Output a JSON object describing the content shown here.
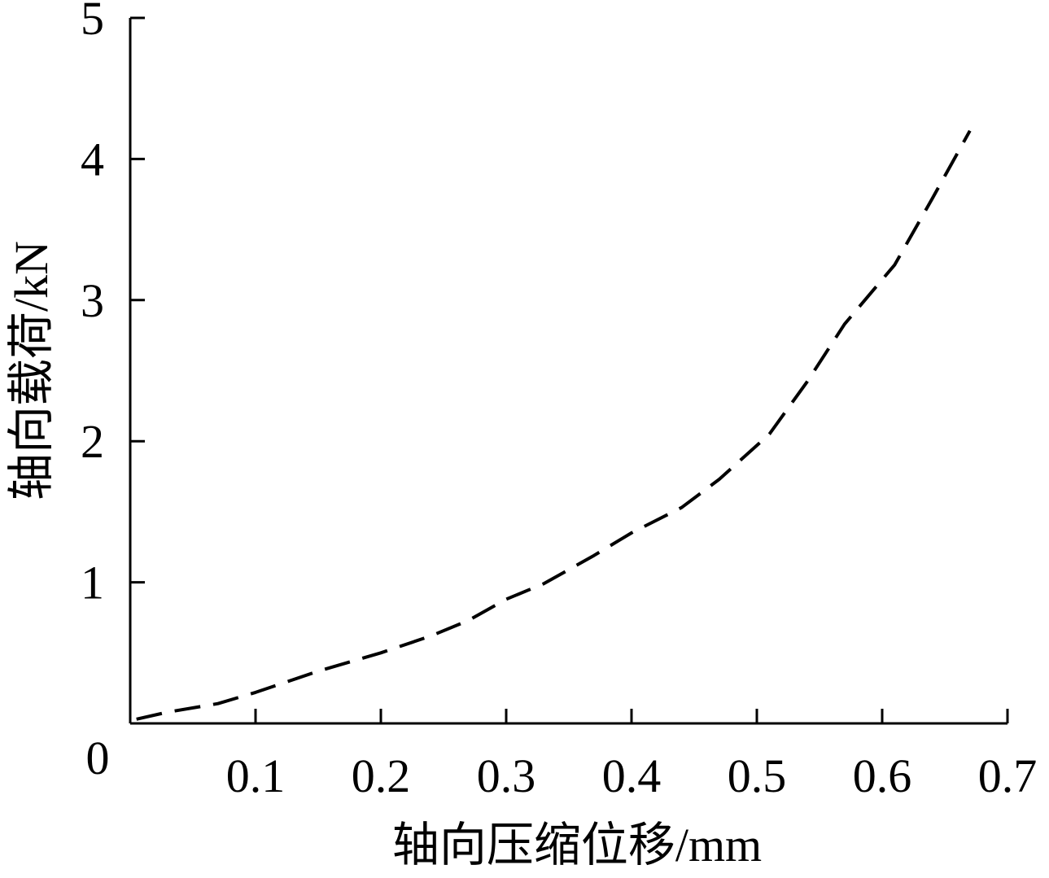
{
  "chart_data": {
    "type": "line",
    "title": "",
    "xlabel": "轴向压缩位移/mm",
    "ylabel": "轴向载荷/kN",
    "origin_label": "0",
    "xlim": [
      0,
      0.7
    ],
    "ylim": [
      0,
      5
    ],
    "x_ticks": [
      {
        "value": 0.1,
        "label": "0.1"
      },
      {
        "value": 0.2,
        "label": "0.2"
      },
      {
        "value": 0.3,
        "label": "0.3"
      },
      {
        "value": 0.4,
        "label": "0.4"
      },
      {
        "value": 0.5,
        "label": "0.5"
      },
      {
        "value": 0.6,
        "label": "0.6"
      },
      {
        "value": 0.7,
        "label": "0.7"
      }
    ],
    "y_ticks": [
      {
        "value": 1,
        "label": "1"
      },
      {
        "value": 2,
        "label": "2"
      },
      {
        "value": 3,
        "label": "3"
      },
      {
        "value": 4,
        "label": "4"
      },
      {
        "value": 5,
        "label": "5"
      }
    ],
    "grid": false,
    "series": [
      {
        "line_style": "dashed",
        "color": "#000000",
        "x": [
          0.005,
          0.03,
          0.07,
          0.1,
          0.15,
          0.2,
          0.24,
          0.27,
          0.3,
          0.33,
          0.37,
          0.4,
          0.44,
          0.47,
          0.51,
          0.54,
          0.57,
          0.61,
          0.64,
          0.67
        ],
        "y": [
          0.03,
          0.08,
          0.14,
          0.22,
          0.37,
          0.5,
          0.62,
          0.73,
          0.88,
          0.99,
          1.19,
          1.35,
          1.53,
          1.73,
          2.05,
          2.42,
          2.83,
          3.25,
          3.72,
          4.2
        ]
      }
    ]
  }
}
